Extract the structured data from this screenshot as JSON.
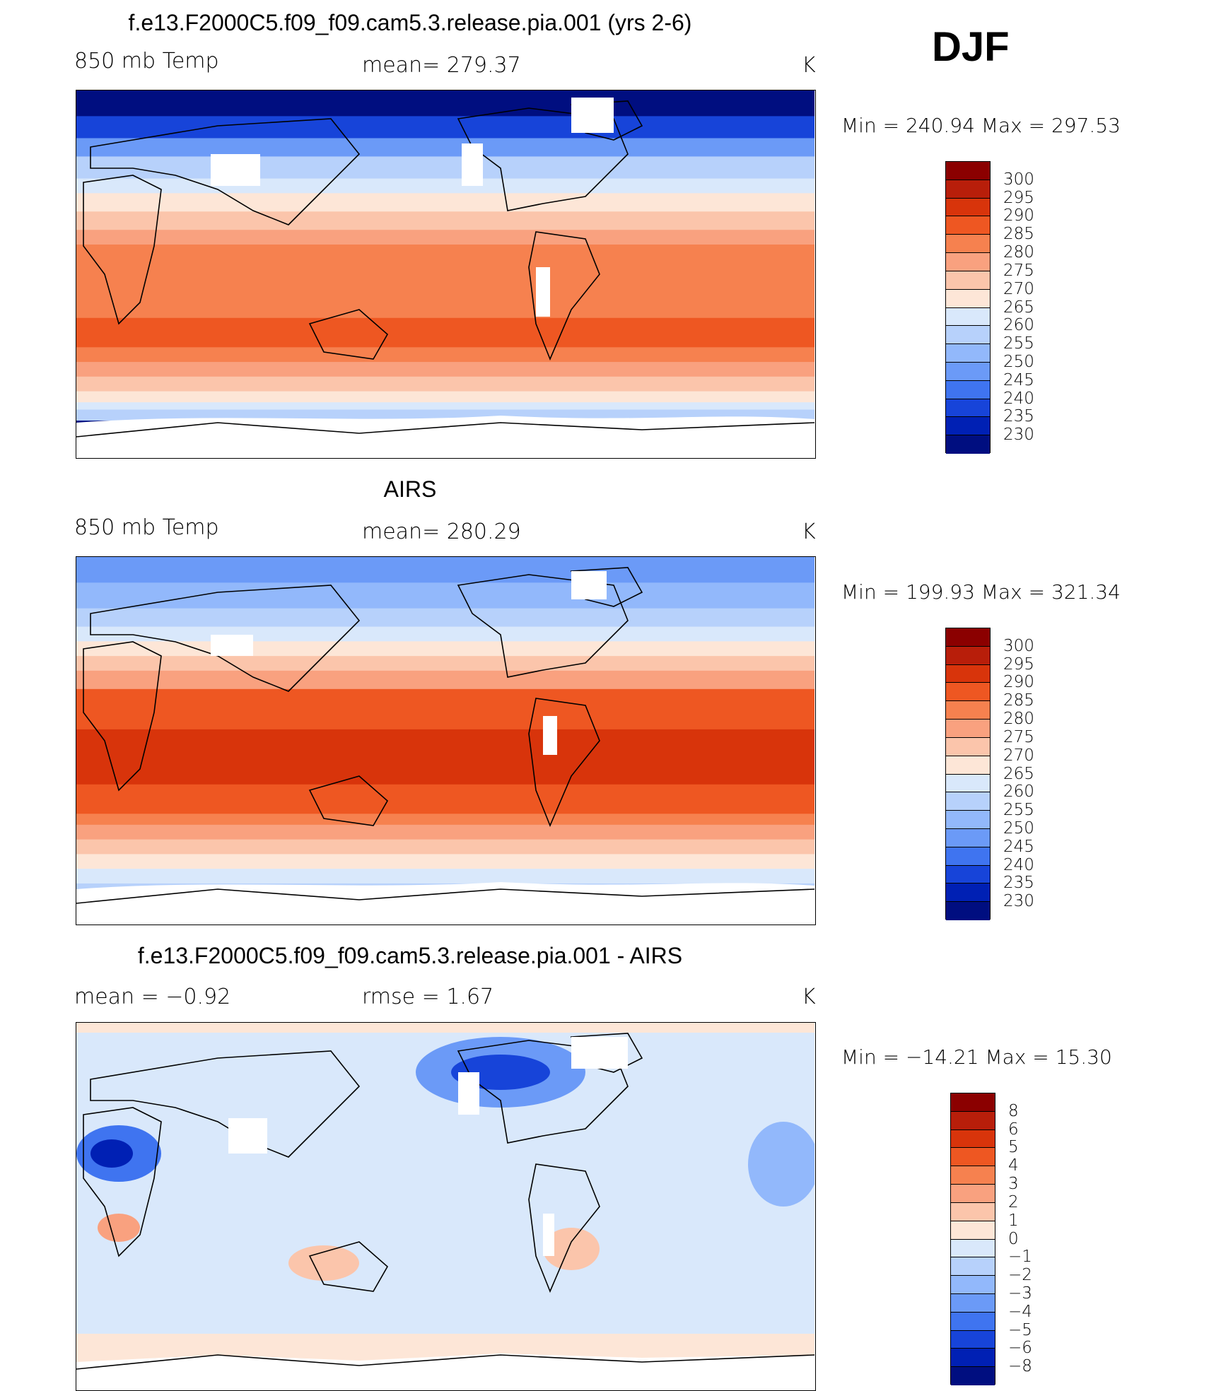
{
  "season": "DJF",
  "panels": [
    {
      "id": "model",
      "title": "f.e13.F2000C5.f09_f09.cam5.3.release.pia.001 (yrs 2-6)",
      "left_label": "850 mb Temp",
      "center_label": "mean= 279.37",
      "units": "K",
      "minmax": "Min = 240.94 Max = 297.53",
      "colorbar": {
        "labels": [
          "300",
          "295",
          "290",
          "285",
          "280",
          "275",
          "270",
          "265",
          "260",
          "255",
          "250",
          "245",
          "240",
          "235",
          "230"
        ],
        "colors": [
          "#8b0000",
          "#b81e0a",
          "#d8340b",
          "#ee5722",
          "#f6814f",
          "#f9a17f",
          "#fbc5ab",
          "#fde6d7",
          "#d9e8fb",
          "#b7d1fb",
          "#92b8fb",
          "#6b9af7",
          "#3f74f0",
          "#1744d9",
          "#0020b4",
          "#000e80"
        ]
      }
    },
    {
      "id": "obs",
      "title": "AIRS",
      "left_label": "850 mb Temp",
      "center_label": "mean= 280.29",
      "units": "K",
      "minmax": "Min = 199.93 Max = 321.34",
      "colorbar": {
        "labels": [
          "300",
          "295",
          "290",
          "285",
          "280",
          "275",
          "270",
          "265",
          "260",
          "255",
          "250",
          "245",
          "240",
          "235",
          "230"
        ],
        "colors": [
          "#8b0000",
          "#b81e0a",
          "#d8340b",
          "#ee5722",
          "#f6814f",
          "#f9a17f",
          "#fbc5ab",
          "#fde6d7",
          "#d9e8fb",
          "#b7d1fb",
          "#92b8fb",
          "#6b9af7",
          "#3f74f0",
          "#1744d9",
          "#0020b4",
          "#000e80"
        ]
      }
    },
    {
      "id": "diff",
      "title": "f.e13.F2000C5.f09_f09.cam5.3.release.pia.001 - AIRS",
      "left_label": "mean =   −0.92",
      "center_label": "rmse =    1.67",
      "units": "K",
      "minmax": "Min = −14.21 Max =  15.30",
      "colorbar": {
        "labels": [
          "8",
          "6",
          "5",
          "4",
          "3",
          "2",
          "1",
          "0",
          "−1",
          "−2",
          "−3",
          "−4",
          "−5",
          "−6",
          "−8"
        ],
        "colors": [
          "#8b0000",
          "#b81e0a",
          "#d8340b",
          "#ee5722",
          "#f6814f",
          "#f9a17f",
          "#fbc5ab",
          "#fde6d7",
          "#d9e8fb",
          "#b7d1fb",
          "#92b8fb",
          "#6b9af7",
          "#3f74f0",
          "#1744d9",
          "#0020b4",
          "#000e80"
        ]
      }
    }
  ]
}
